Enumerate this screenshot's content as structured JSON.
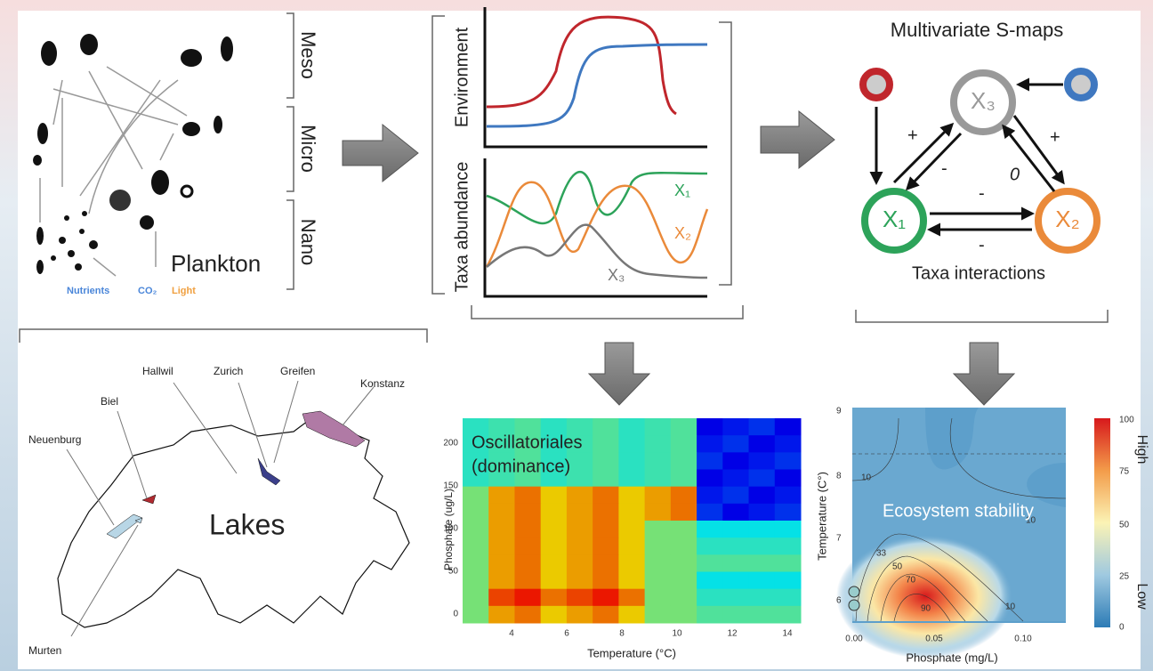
{
  "plankton": {
    "size_classes": [
      "Meso",
      "Micro",
      "Nano"
    ],
    "label": "Plankton",
    "drivers": [
      "Nutrients",
      "CO₂",
      "Light"
    ]
  },
  "timeseries": {
    "top_label": "Environment",
    "bottom_label": "Taxa abundance",
    "taxa": [
      "X₁",
      "X₂",
      "X₃"
    ]
  },
  "smaps": {
    "title": "Multivariate S-maps",
    "nodes": [
      "X₃",
      "X₁",
      "X₂"
    ],
    "edge_signs": [
      "+",
      "-",
      "0",
      "+",
      "-",
      "-"
    ],
    "caption": "Taxa interactions"
  },
  "map": {
    "title": "Lakes",
    "lakes": [
      "Hallwil",
      "Zurich",
      "Greifen",
      "Konstanz",
      "Biel",
      "Neuenburg",
      "Murten"
    ]
  },
  "heatmap": {
    "title": [
      "Oscillatoriales",
      "(dominance)"
    ],
    "x_label": "Temperature (°C)",
    "y_label": "Phosphate (ug/L)",
    "xticks": [
      "4",
      "6",
      "8",
      "10",
      "12",
      "14"
    ],
    "yticks": [
      "0",
      "50",
      "100",
      "150",
      "200"
    ]
  },
  "stability": {
    "title": "Ecosystem stability",
    "x_label": "Phosphate (mg/L)",
    "y_label": "Temperature (C°)",
    "xticks": [
      "0.00",
      "0.05",
      "0.10"
    ],
    "yticks": [
      "9",
      "8",
      "7",
      "6"
    ],
    "contour_labels": [
      "10",
      "10",
      "33",
      "50",
      "70",
      "90",
      "10"
    ],
    "colorbar_ticks": [
      "100",
      "75",
      "50",
      "25",
      "0"
    ],
    "colorbar_labels": [
      "High",
      "Low"
    ]
  }
}
